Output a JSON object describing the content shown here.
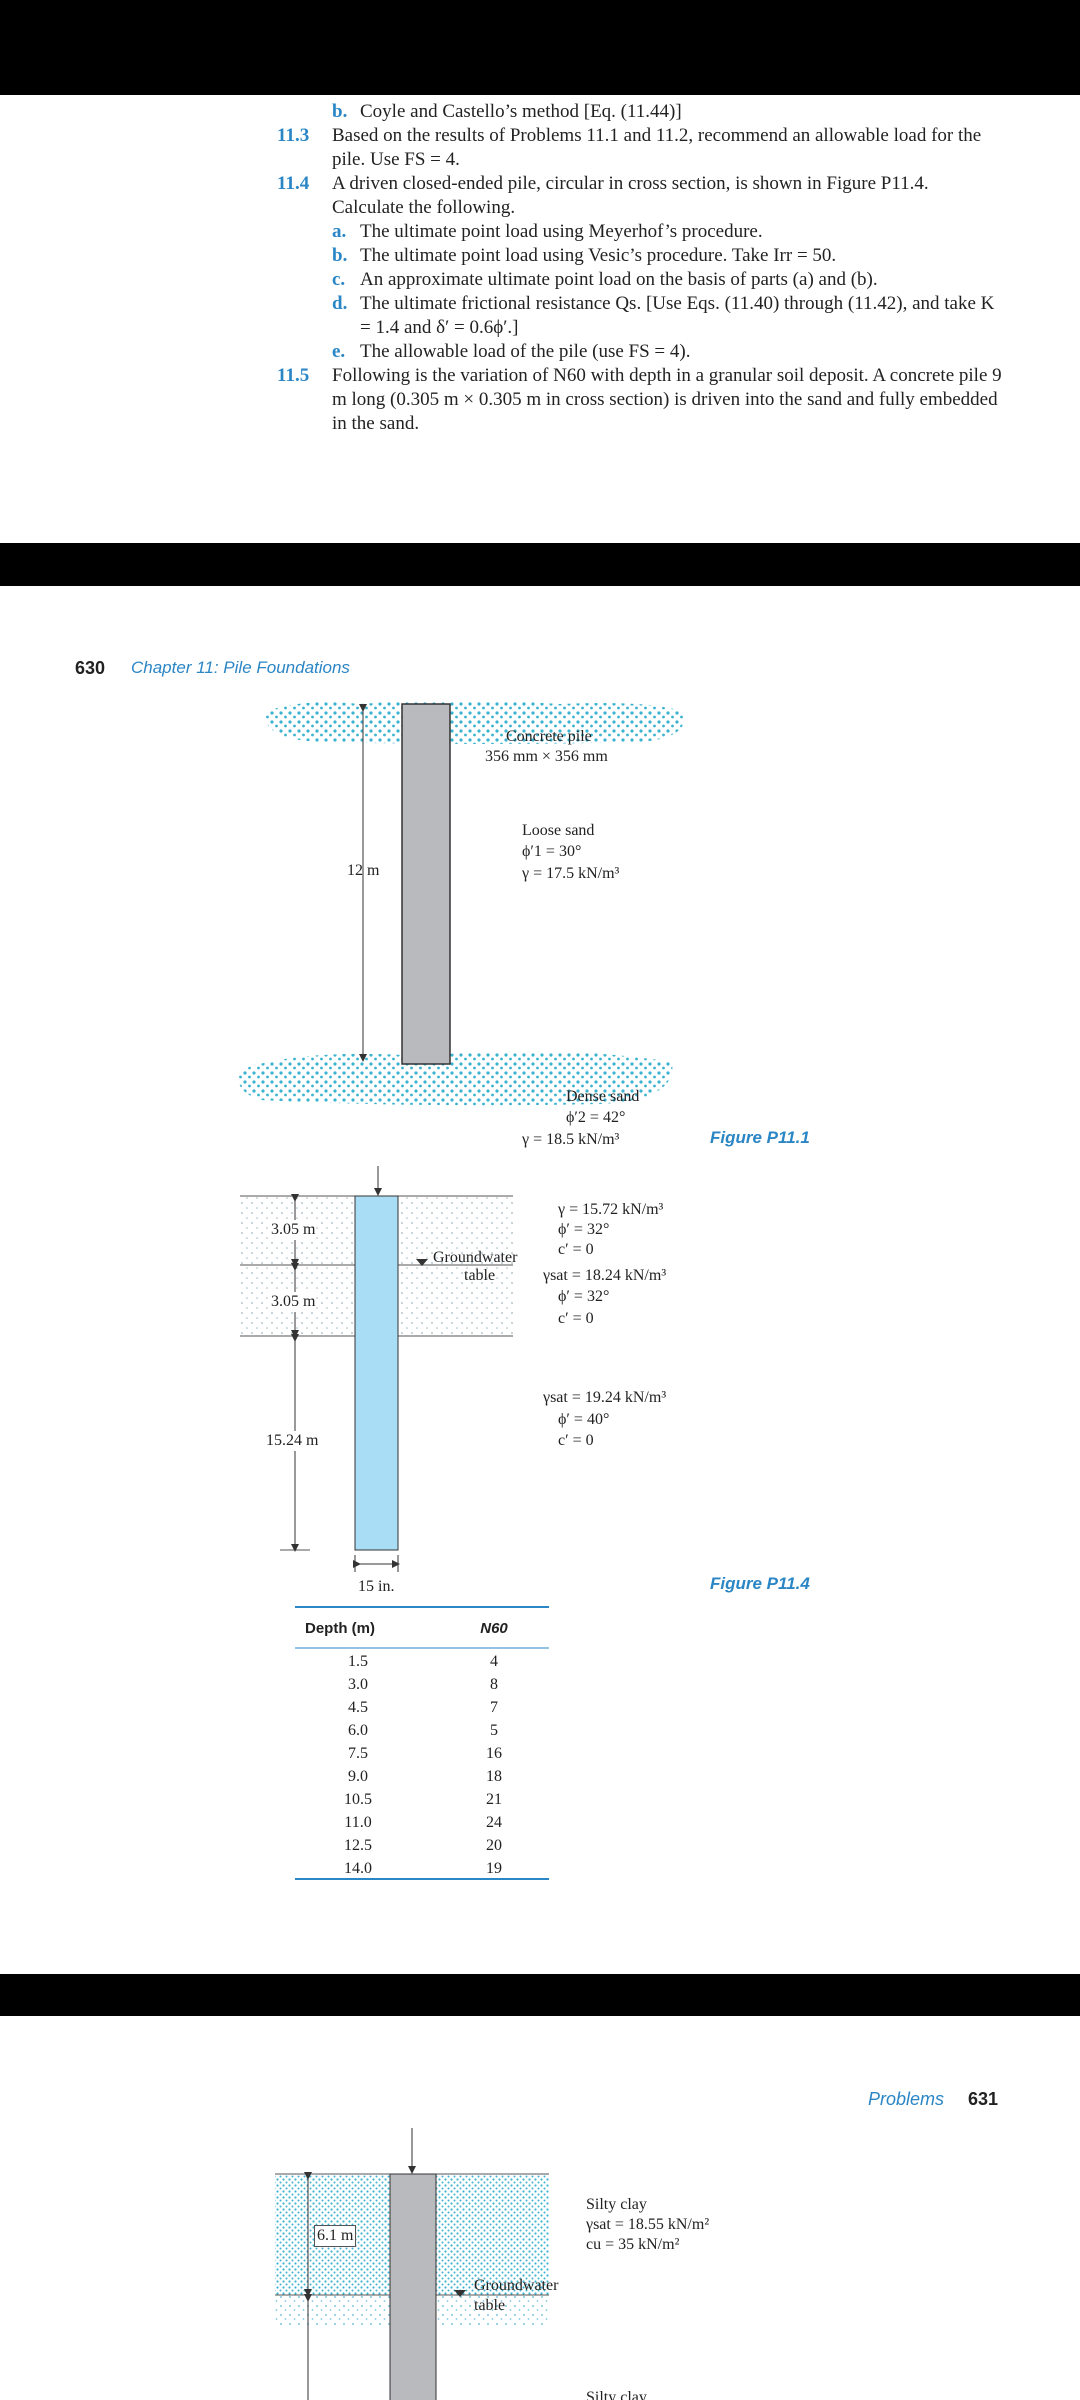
{
  "page1": {
    "prev_item": {
      "label": "b.",
      "text": "Coyle and Castello’s method [Eq. (11.44)]"
    },
    "problems": [
      {
        "number": "11.3",
        "text": "Based on the results of Problems 11.1 and 11.2, recommend an allowable load for the pile. Use FS = 4.",
        "items": []
      },
      {
        "number": "11.4",
        "text": "A driven closed-ended pile, circular in cross section, is shown in Figure P11.4. Calculate the following.",
        "items": [
          {
            "label": "a.",
            "text": "The ultimate point load using Meyerhof’s procedure."
          },
          {
            "label": "b.",
            "text": "The ultimate point load using Vesic’s procedure. Take Irr = 50."
          },
          {
            "label": "c.",
            "text": "An approximate ultimate point load on the basis of parts (a) and (b)."
          },
          {
            "label": "d.",
            "text": "The ultimate frictional resistance Qs. [Use Eqs. (11.40) through (11.42), and take K = 1.4 and δ′ = 0.6ϕ′.]"
          },
          {
            "label": "e.",
            "text": "The allowable load of the pile (use FS = 4)."
          }
        ]
      },
      {
        "number": "11.5",
        "text": "Following is the variation of N60 with depth in a granular soil deposit. A concrete pile 9 m long (0.305 m × 0.305 m in cross section) is driven into the sand and fully embedded in the sand.",
        "items": []
      }
    ]
  },
  "page2": {
    "header": {
      "page_number": "630",
      "chapter": "Chapter 11: Pile Foundations"
    },
    "figure_p11_1": {
      "pile_label": [
        "Concrete pile",
        "356 mm × 356 mm"
      ],
      "length": "12 m",
      "loose_sand": [
        "Loose sand",
        "ϕ′1 = 30°",
        "γ = 17.5 kN/m³"
      ],
      "dense_sand": [
        "Dense sand",
        "ϕ′2 = 42°",
        "γ = 18.5 kN/m³"
      ],
      "caption": "Figure P11.1"
    },
    "figure_p11_4": {
      "depths": [
        "3.05 m",
        "3.05 m",
        "15.24 m"
      ],
      "groundwater": [
        "Groundwater",
        "table"
      ],
      "layer1": [
        "γ = 15.72 kN/m³",
        "ϕ′ = 32°",
        "c′ = 0"
      ],
      "layer2": [
        "γsat = 18.24 kN/m³",
        "ϕ′ = 32°",
        "c′ = 0"
      ],
      "layer3": [
        "γsat = 19.24 kN/m³",
        "ϕ′ = 40°",
        "c′ = 0"
      ],
      "diameter": "15 in.",
      "caption": "Figure P11.4"
    },
    "table": {
      "headers": [
        "Depth (m)",
        "N60"
      ],
      "rows": [
        [
          "1.5",
          "4"
        ],
        [
          "3.0",
          "8"
        ],
        [
          "4.5",
          "7"
        ],
        [
          "6.0",
          "5"
        ],
        [
          "7.5",
          "16"
        ],
        [
          "9.0",
          "18"
        ],
        [
          "10.5",
          "21"
        ],
        [
          "11.0",
          "24"
        ],
        [
          "12.5",
          "20"
        ],
        [
          "14.0",
          "19"
        ]
      ]
    }
  },
  "page3": {
    "header": {
      "title": "Problems",
      "page_number": "631"
    },
    "figure": {
      "depth": "6.1 m",
      "layer1": [
        "Silty clay",
        "γsat = 18.55 kN/m²",
        "cu = 35 kN/m²"
      ],
      "groundwater": [
        "Groundwater",
        "table"
      ],
      "layer2": "Silty clay"
    }
  }
}
